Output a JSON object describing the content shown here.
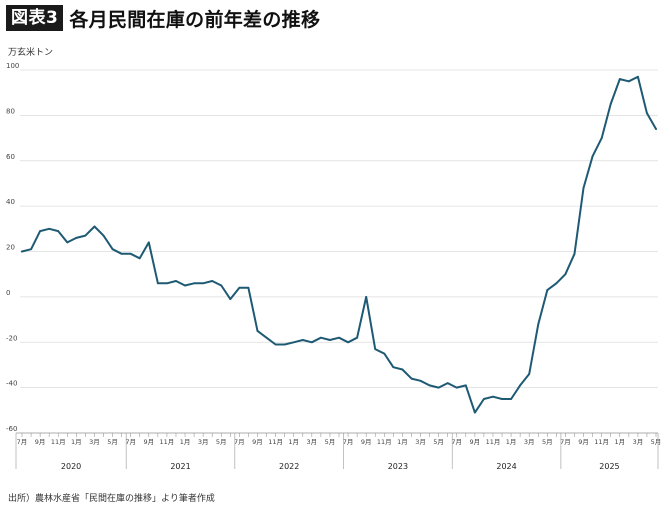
{
  "header": {
    "badge": "図表3",
    "title": "各月民間在庫の前年差の推移"
  },
  "unit_label": "万玄米トン",
  "source": "出所）農林水産省「民間在庫の推移」より筆者作成",
  "colors": {
    "line": "#1e5a73",
    "grid": "#dcdcdc",
    "axis": "#999999"
  },
  "chart_data": {
    "type": "line",
    "title": "各月民間在庫の前年差の推移",
    "ylabel": "万玄米トン",
    "ylim": [
      -60,
      100
    ],
    "yticks": [
      -60,
      -40,
      -20,
      0,
      20,
      40,
      60,
      80,
      100
    ],
    "grid": true,
    "month_tick_labels": [
      "7月",
      "8月",
      "9月",
      "10月",
      "11月",
      "12月",
      "1月",
      "2月",
      "3月",
      "4月",
      "5月",
      "6月",
      "7月",
      "8月",
      "9月",
      "10月",
      "11月",
      "12月",
      "1月",
      "2月",
      "3月",
      "4月",
      "5月",
      "6月",
      "7月",
      "8月",
      "9月",
      "10月",
      "11月",
      "12月",
      "1月",
      "2月",
      "3月",
      "4月",
      "5月",
      "6月",
      "7月",
      "8月",
      "9月",
      "10月",
      "11月",
      "12月",
      "1月",
      "2月",
      "3月",
      "4月",
      "5月",
      "6月",
      "7月",
      "8月",
      "9月",
      "10月",
      "11月",
      "12月",
      "1月",
      "2月",
      "3月",
      "4月",
      "5月",
      "6月",
      "7月",
      "8月",
      "9月",
      "10月",
      "11月",
      "12月",
      "1月",
      "2月",
      "3月",
      "4月",
      "5月"
    ],
    "year_groups": [
      {
        "label": "2020",
        "months": 12
      },
      {
        "label": "2021",
        "months": 12
      },
      {
        "label": "2022",
        "months": 12
      },
      {
        "label": "2023",
        "months": 12
      },
      {
        "label": "2024",
        "months": 12
      },
      {
        "label": "2025",
        "months": 11
      }
    ],
    "series": [
      {
        "values": [
          20,
          21,
          29,
          30,
          29,
          24,
          26,
          27,
          31,
          27,
          21,
          19,
          19,
          17,
          24,
          6,
          6,
          7,
          5,
          6,
          6,
          7,
          5,
          -1,
          4,
          4,
          -15,
          -18,
          -21,
          -21,
          -20,
          -19,
          -20,
          -18,
          -19,
          -18,
          -20,
          -18,
          0,
          -23,
          -25,
          -31,
          -32,
          -36,
          -37,
          -39,
          -40,
          -38,
          -40,
          -39,
          -51,
          -45,
          -44,
          -45,
          -45,
          -39,
          -34,
          -12,
          3,
          6,
          10,
          19,
          48,
          62,
          70,
          85,
          96,
          95,
          97,
          81,
          74
        ]
      }
    ]
  }
}
